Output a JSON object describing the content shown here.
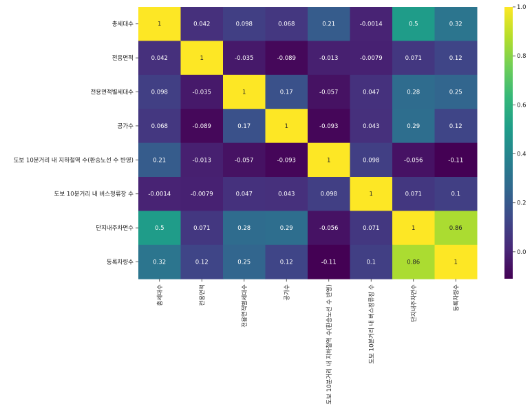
{
  "chart_data": {
    "type": "heatmap",
    "title": "",
    "colormap": "viridis",
    "vmin": -0.11,
    "vmax": 1.0,
    "row_labels": [
      "총세대수",
      "전용면적",
      "전용면적별세대수",
      "공가수",
      "도보 10분거리 내 지하철역 수(환승노선 수 반영)",
      "도보 10분거리 내 버스정류장 수",
      "단지내주차면수",
      "등록차량수"
    ],
    "col_labels": [
      "총세대수",
      "전용면적",
      "전용면적별세대수",
      "공가수",
      "도보 10분거리 내 지하철역 수(환승노선 수 반영)",
      "도보 10분거리 내 버스정류장 수",
      "단지내주차면수",
      "등록차량수"
    ],
    "values": [
      [
        1,
        0.042,
        0.098,
        0.068,
        0.21,
        -0.0014,
        0.5,
        0.32
      ],
      [
        0.042,
        1,
        -0.035,
        -0.089,
        -0.013,
        -0.0079,
        0.071,
        0.12
      ],
      [
        0.098,
        -0.035,
        1,
        0.17,
        -0.057,
        0.047,
        0.28,
        0.25
      ],
      [
        0.068,
        -0.089,
        0.17,
        1,
        -0.093,
        0.043,
        0.29,
        0.12
      ],
      [
        0.21,
        -0.013,
        -0.057,
        -0.093,
        1,
        0.098,
        -0.056,
        -0.11
      ],
      [
        -0.0014,
        -0.0079,
        0.047,
        0.043,
        0.098,
        1,
        0.071,
        0.1
      ],
      [
        0.5,
        0.071,
        0.28,
        0.29,
        -0.056,
        0.071,
        1,
        0.86
      ],
      [
        0.32,
        0.12,
        0.25,
        0.12,
        -0.11,
        0.1,
        0.86,
        1
      ]
    ],
    "annotations": [
      [
        "1",
        "0.042",
        "0.098",
        "0.068",
        "0.21",
        "-0.0014",
        "0.5",
        "0.32"
      ],
      [
        "0.042",
        "1",
        "-0.035",
        "-0.089",
        "-0.013",
        "-0.0079",
        "0.071",
        "0.12"
      ],
      [
        "0.098",
        "-0.035",
        "1",
        "0.17",
        "-0.057",
        "0.047",
        "0.28",
        "0.25"
      ],
      [
        "0.068",
        "-0.089",
        "0.17",
        "1",
        "-0.093",
        "0.043",
        "0.29",
        "0.12"
      ],
      [
        "0.21",
        "-0.013",
        "-0.057",
        "-0.093",
        "1",
        "0.098",
        "-0.056",
        "-0.11"
      ],
      [
        "-0.0014",
        "-0.0079",
        "0.047",
        "0.043",
        "0.098",
        "1",
        "0.071",
        "0.1"
      ],
      [
        "0.5",
        "0.071",
        "0.28",
        "0.29",
        "-0.056",
        "0.071",
        "1",
        "0.86"
      ],
      [
        "0.32",
        "0.12",
        "0.25",
        "0.12",
        "-0.11",
        "0.1",
        "0.86",
        "1"
      ]
    ],
    "colorbar": {
      "ticks": [
        0.0,
        0.2,
        0.4,
        0.6,
        0.8,
        1.0
      ],
      "tick_labels": [
        "0.0",
        "0.2",
        "0.4",
        "0.6",
        "0.8",
        "1.0"
      ]
    }
  }
}
